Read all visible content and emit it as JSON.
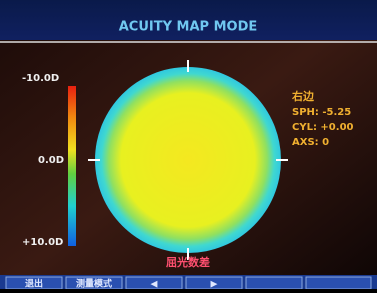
{
  "header": {
    "title": "ACUITY MAP MODE"
  },
  "scale": {
    "labels": [
      "-10.0D",
      "0.0D",
      "+10.0D"
    ]
  },
  "info": {
    "side": "右边",
    "lines": [
      "SPH: -5.25",
      "CYL: +0.00",
      "AXS: 0"
    ]
  },
  "map_label": "屈光数差",
  "buttons": [
    "退出",
    "测量模式",
    "◀",
    "▶"
  ]
}
